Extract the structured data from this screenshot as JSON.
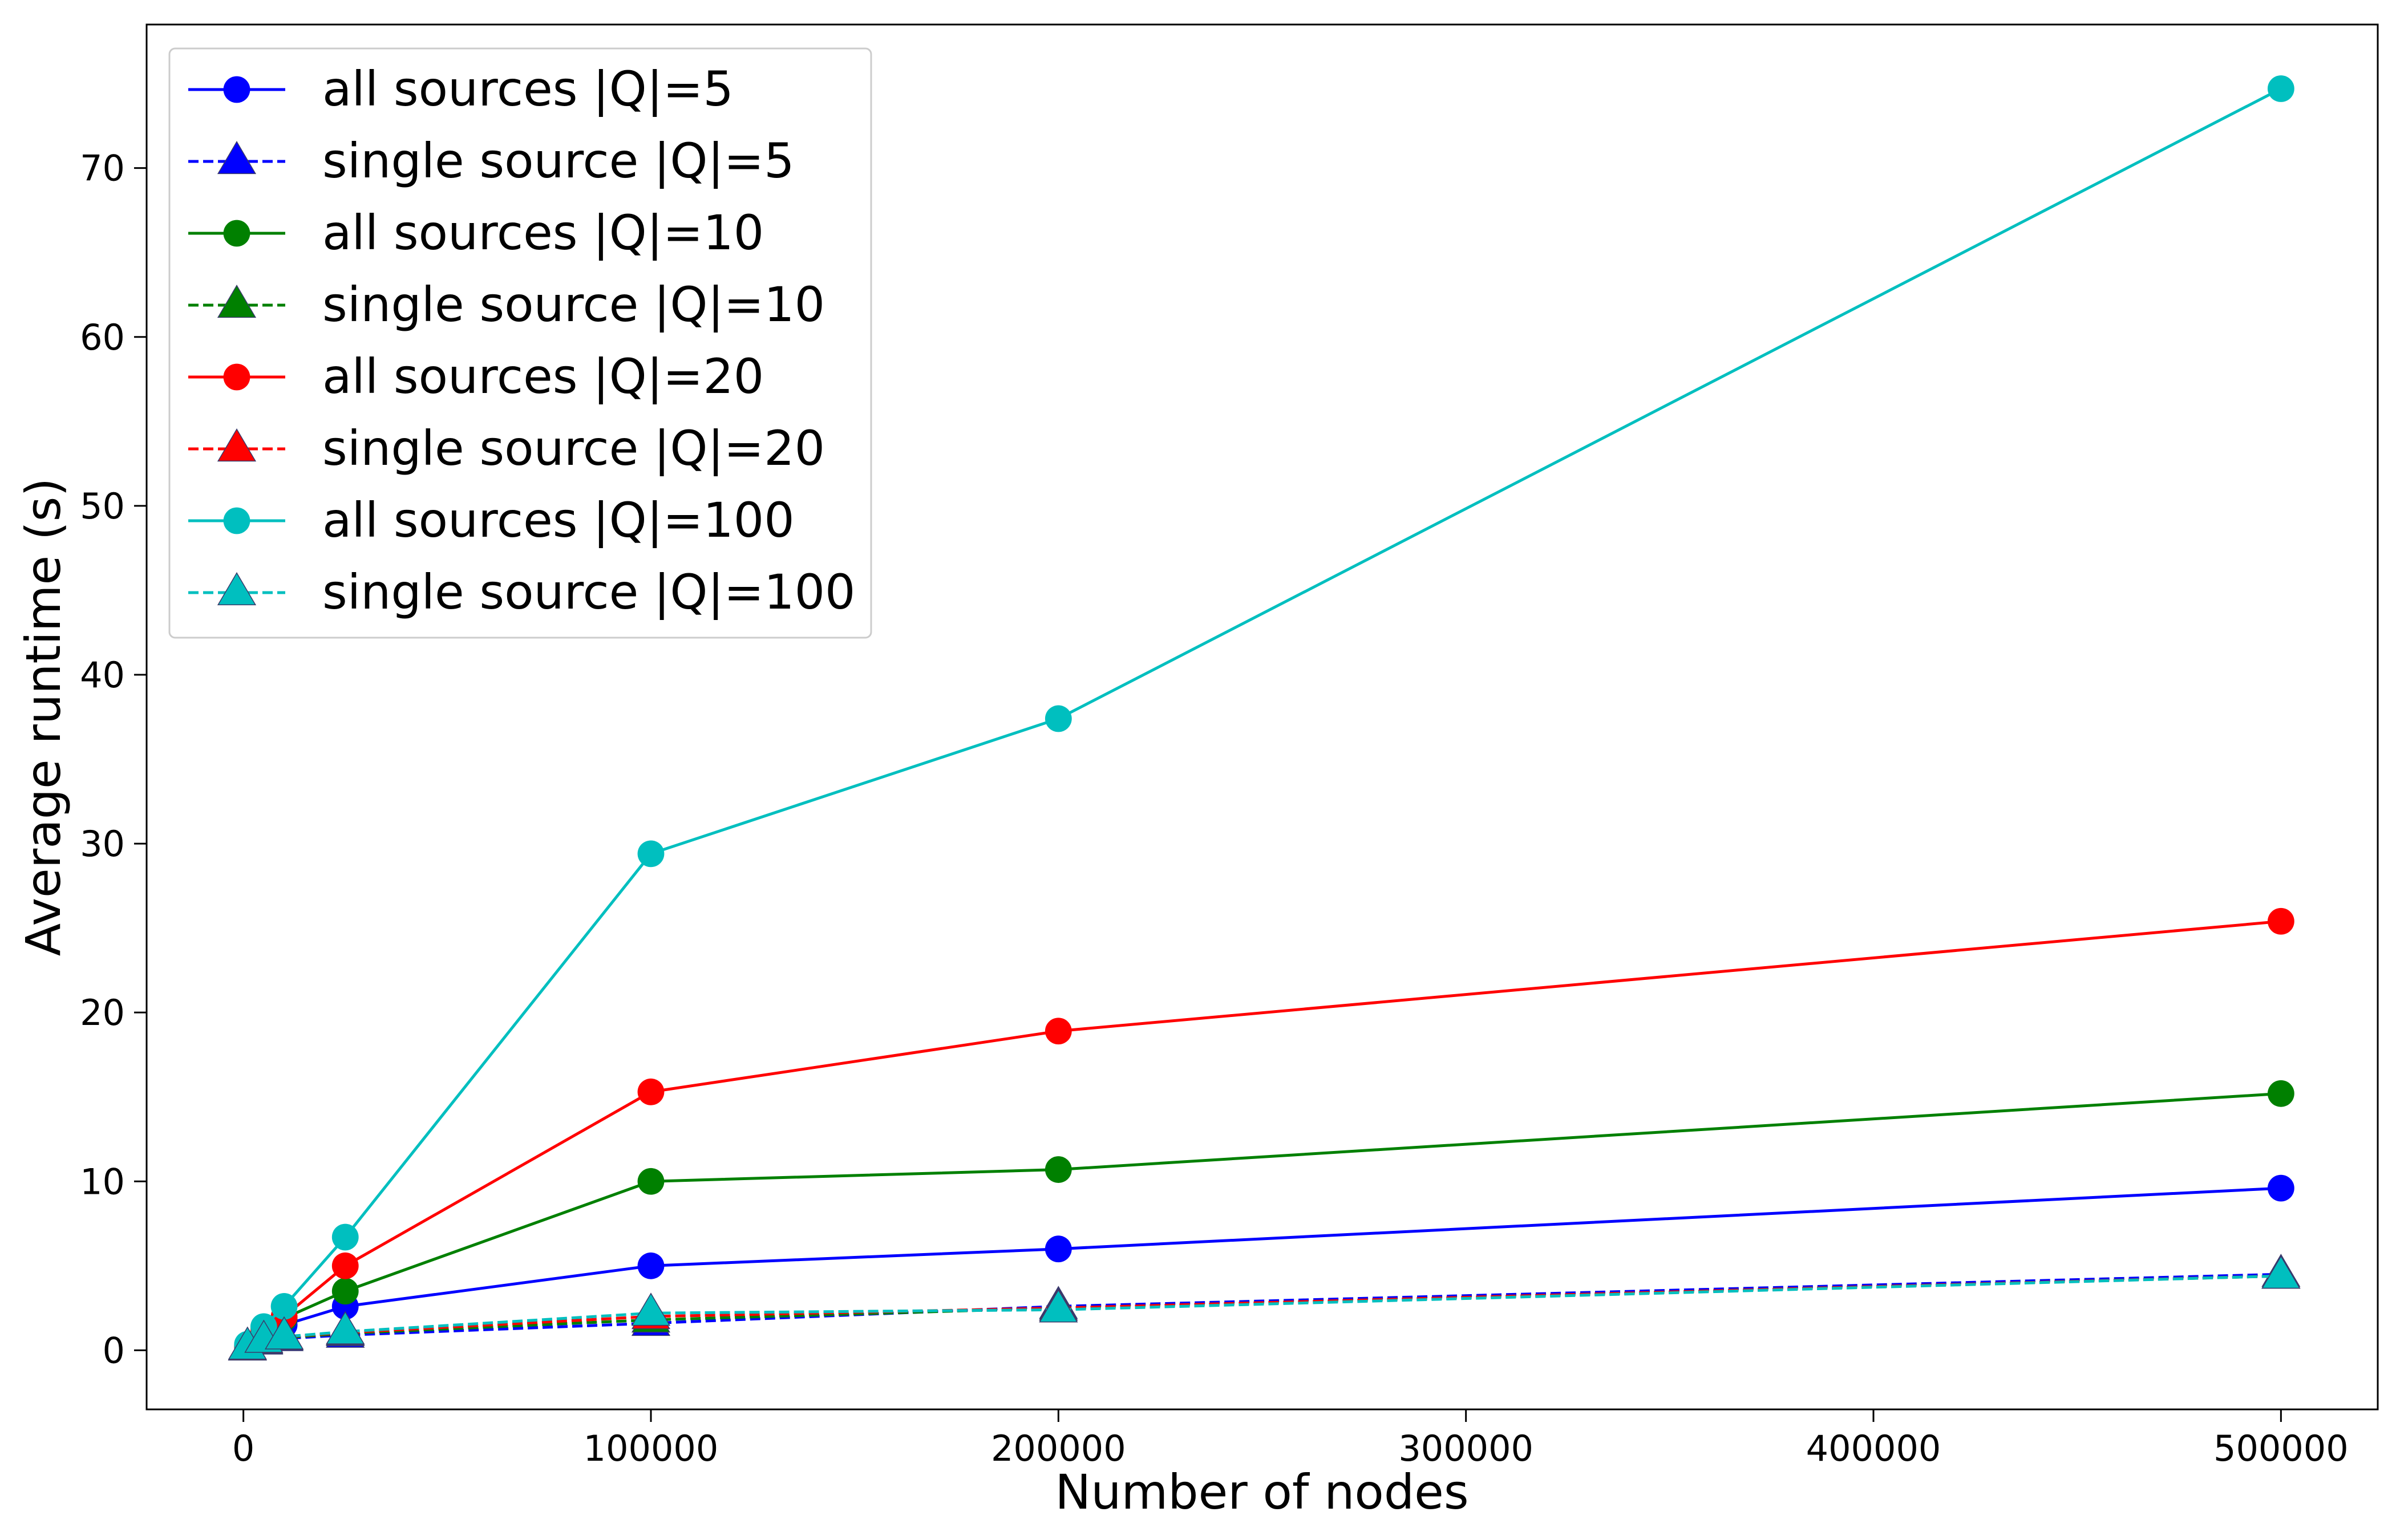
{
  "chart_data": {
    "type": "line",
    "title": "",
    "xlabel": "Number of nodes",
    "ylabel": "Average runtime (s)",
    "xlim": [
      -23750,
      523750
    ],
    "ylim": [
      -3.5,
      78.5
    ],
    "xticks": [
      0,
      100000,
      200000,
      300000,
      400000,
      500000
    ],
    "xtick_labels": [
      "0",
      "100000",
      "200000",
      "300000",
      "400000",
      "500000"
    ],
    "yticks": [
      0,
      10,
      20,
      30,
      40,
      50,
      60,
      70
    ],
    "ytick_labels": [
      "0",
      "10",
      "20",
      "30",
      "40",
      "50",
      "60",
      "70"
    ],
    "grid": false,
    "legend_position": "top-left",
    "x": [
      1000,
      5000,
      10000,
      25000,
      100000,
      200000,
      500000
    ],
    "series": [
      {
        "name": "all sources |Q|=5",
        "color": "#0000ff",
        "linestyle": "solid",
        "marker": "circle",
        "values": [
          0.2,
          0.9,
          1.5,
          2.6,
          5.0,
          6.0,
          9.6
        ]
      },
      {
        "name": "single source |Q|=5",
        "color": "#0000ff",
        "linestyle": "dashed",
        "marker": "triangle",
        "values": [
          0.15,
          0.5,
          0.7,
          0.9,
          1.6,
          2.6,
          4.5
        ]
      },
      {
        "name": "all sources |Q|=10",
        "color": "#008000",
        "linestyle": "solid",
        "marker": "circle",
        "values": [
          0.25,
          1.1,
          1.9,
          3.5,
          10.0,
          10.7,
          15.2
        ]
      },
      {
        "name": "single source |Q|=10",
        "color": "#008000",
        "linestyle": "dashed",
        "marker": "triangle",
        "values": [
          0.15,
          0.55,
          0.75,
          1.0,
          1.8,
          2.5,
          4.4
        ]
      },
      {
        "name": "all sources |Q|=20",
        "color": "#ff0000",
        "linestyle": "solid",
        "marker": "circle",
        "values": [
          0.3,
          1.2,
          2.0,
          5.0,
          15.3,
          18.9,
          25.4
        ]
      },
      {
        "name": "single source |Q|=20",
        "color": "#ff0000",
        "linestyle": "dashed",
        "marker": "triangle",
        "values": [
          0.15,
          0.55,
          0.8,
          1.05,
          2.0,
          2.5,
          4.4
        ]
      },
      {
        "name": "all sources |Q|=100",
        "color": "#00bfbf",
        "linestyle": "solid",
        "marker": "circle",
        "values": [
          0.35,
          1.4,
          2.6,
          6.7,
          29.4,
          37.4,
          74.7
        ]
      },
      {
        "name": "single source |Q|=100",
        "color": "#00bfbf",
        "linestyle": "dashed",
        "marker": "triangle",
        "values": [
          0.2,
          0.6,
          0.8,
          1.1,
          2.2,
          2.4,
          4.4
        ]
      }
    ]
  }
}
